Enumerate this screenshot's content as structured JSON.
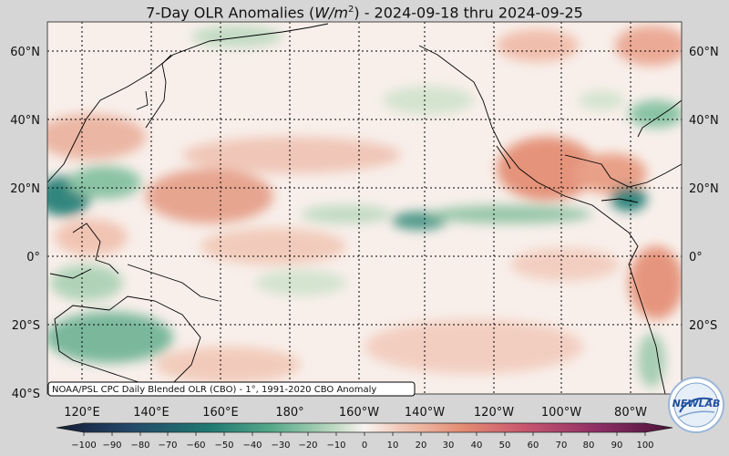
{
  "title": {
    "prefix": "7-Day OLR Anomalies (",
    "unit_base": "W/m",
    "unit_exp": "2",
    "suffix": ") - 2024-09-18 thru 2024-09-25"
  },
  "axes": {
    "lat_labels": [
      "60°N",
      "40°N",
      "20°N",
      "0°",
      "20°S",
      "40°S"
    ],
    "lon_labels": [
      "120°E",
      "140°E",
      "160°E",
      "180°",
      "160°W",
      "140°W",
      "120°W",
      "100°W",
      "80°W"
    ]
  },
  "source_note": "NOAA/PSL CPC Daily Blended OLR (CBO) - 1°, 1991-2020 CBO Anomaly",
  "colorbar": {
    "ticks": [
      "−100",
      "−90",
      "−80",
      "−70",
      "−60",
      "−50",
      "−40",
      "−30",
      "−20",
      "−10",
      "0",
      "10",
      "20",
      "30",
      "40",
      "50",
      "60",
      "70",
      "80",
      "90",
      "100"
    ],
    "colors": {
      "very_negative": "#1c2a4a",
      "negative_strong": "#1f7a72",
      "negative_mid": "#57a98a",
      "negative_light": "#bcd9c0",
      "near_zero": "#f8f3f0",
      "positive_light": "#f1c7b6",
      "positive_mid": "#e48c72",
      "positive_strong": "#c8566f",
      "very_positive": "#5e1b4d"
    }
  },
  "logo": {
    "text": "NEWLAB",
    "color": "#1f4f9d"
  }
}
